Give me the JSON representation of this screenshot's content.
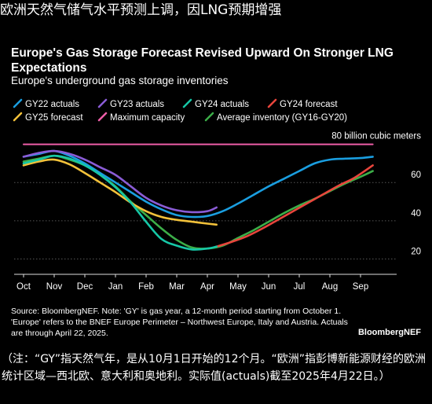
{
  "headline": "欧洲天然气储气水平预测上调，因LNG预期增强",
  "note": "（注：“GY”指天然气年，是从10月1日开始的12个月。“欧洲”指彭博新能源财经的欧洲统计区域—西北欧、意大利和奥地利。实际值(actuals)截至2025年4月22日。）",
  "brand": "BloombergNEF",
  "source": "Source: BloombergNEF. Note: 'GY' is gas year, a 12-month period starting from October 1. 'Europe' refers to the BNEF Europe Perimeter – Northwest Europe, Italy and Austria. Actuals are through April 22, 2025.",
  "chart_data": {
    "type": "line",
    "title": "Europe's Gas Storage Forecast Revised Upward On Stronger LNG Expectations",
    "subtitle": "Europe's underground gas storage inventories",
    "unit_label": "80 billion cubic meters",
    "x_labels": [
      "Oct",
      "Nov",
      "Dec",
      "Jan",
      "Feb",
      "Mar",
      "Apr",
      "May",
      "Jun",
      "Jul",
      "Aug",
      "Sep"
    ],
    "y_ticks": [
      20,
      40,
      60,
      80
    ],
    "ylim": [
      12,
      86
    ],
    "grid": true,
    "legend_position": "top",
    "colors": {
      "gy22": "#1a9ee0",
      "gy23": "#8a5cd6",
      "gy24": "#16c7a6",
      "gy24f": "#e8453c",
      "gy25f": "#f2c13a",
      "max": "#ee5ea8",
      "avg": "#3cae48"
    },
    "series": [
      {
        "key": "max",
        "name": "Maximum capacity",
        "x": [
          0,
          11.4
        ],
        "y": [
          80,
          80
        ]
      },
      {
        "key": "avg",
        "name": "Average inventory (GY16-GY20)",
        "x": [
          0,
          0.5,
          1,
          1.5,
          2,
          2.5,
          3,
          3.5,
          4,
          4.5,
          5,
          5.5,
          6,
          6.5,
          7,
          7.5,
          8,
          8.5,
          9,
          9.5,
          10,
          10.5,
          11,
          11.4
        ],
        "y": [
          71,
          72.5,
          74,
          72,
          69,
          64,
          58,
          50,
          43,
          36,
          30,
          26,
          25.5,
          27,
          31,
          35,
          39.5,
          44,
          48,
          51.5,
          55.5,
          59.5,
          63,
          66
        ]
      },
      {
        "key": "gy22",
        "name": "GY22 actuals",
        "x": [
          0,
          0.5,
          1,
          1.5,
          2,
          2.5,
          3,
          3.5,
          4,
          4.5,
          5,
          5.5,
          6,
          6.5,
          7,
          7.5,
          8,
          8.5,
          9,
          9.5,
          10,
          10.5,
          11,
          11.4
        ],
        "y": [
          73.5,
          75,
          76.5,
          74,
          70,
          65,
          60,
          55,
          50,
          46,
          43,
          42,
          42.5,
          45,
          49,
          53.5,
          58,
          62,
          66,
          70,
          72,
          72.5,
          72.8,
          73.5
        ]
      },
      {
        "key": "gy23",
        "name": "GY23 actuals",
        "x": [
          0,
          0.5,
          1,
          1.5,
          2,
          2.5,
          3,
          3.5,
          4,
          4.5,
          5,
          5.5,
          6,
          6.3
        ],
        "y": [
          73.5,
          75.5,
          76.5,
          75,
          72,
          68,
          64,
          58,
          52,
          48,
          45.5,
          44.5,
          45,
          47
        ]
      },
      {
        "key": "gy24",
        "name": "GY24 actuals",
        "x": [
          0,
          0.5,
          1,
          1.5,
          2,
          2.5,
          3,
          3.5,
          4,
          4.5,
          5,
          5.5,
          6,
          6.3
        ],
        "y": [
          70,
          72,
          74,
          72.5,
          69,
          64,
          57.5,
          49.5,
          39.5,
          30.5,
          27,
          25,
          25.5,
          26.5
        ]
      },
      {
        "key": "gy24f",
        "name": "GY24 forecast",
        "x": [
          6.3,
          6.8,
          7.3,
          7.8,
          8.3,
          8.8,
          9.3,
          9.8,
          10.3,
          10.8,
          11.4
        ],
        "y": [
          26.5,
          29,
          32,
          36,
          40.5,
          45,
          49.5,
          54,
          58.5,
          62.5,
          69
        ]
      },
      {
        "key": "gy25f",
        "name": "GY25 forecast",
        "x": [
          0,
          0.5,
          1,
          1.5,
          2,
          2.5,
          3,
          3.5,
          4,
          4.5,
          5,
          5.5,
          6,
          6.3
        ],
        "y": [
          69,
          71,
          72,
          69.5,
          65,
          60,
          55,
          49.5,
          45,
          42,
          40.5,
          39.5,
          38.5,
          38
        ]
      }
    ]
  },
  "legend": [
    {
      "key": "gy22",
      "label": "GY22 actuals"
    },
    {
      "key": "gy23",
      "label": "GY23 actuals"
    },
    {
      "key": "gy24",
      "label": "GY24 actuals"
    },
    {
      "key": "gy24f",
      "label": "GY24 forecast"
    },
    {
      "key": "gy25f",
      "label": "GY25 forecast"
    },
    {
      "key": "max",
      "label": "Maximum capacity"
    },
    {
      "key": "avg",
      "label": "Average inventory (GY16-GY20)"
    }
  ]
}
